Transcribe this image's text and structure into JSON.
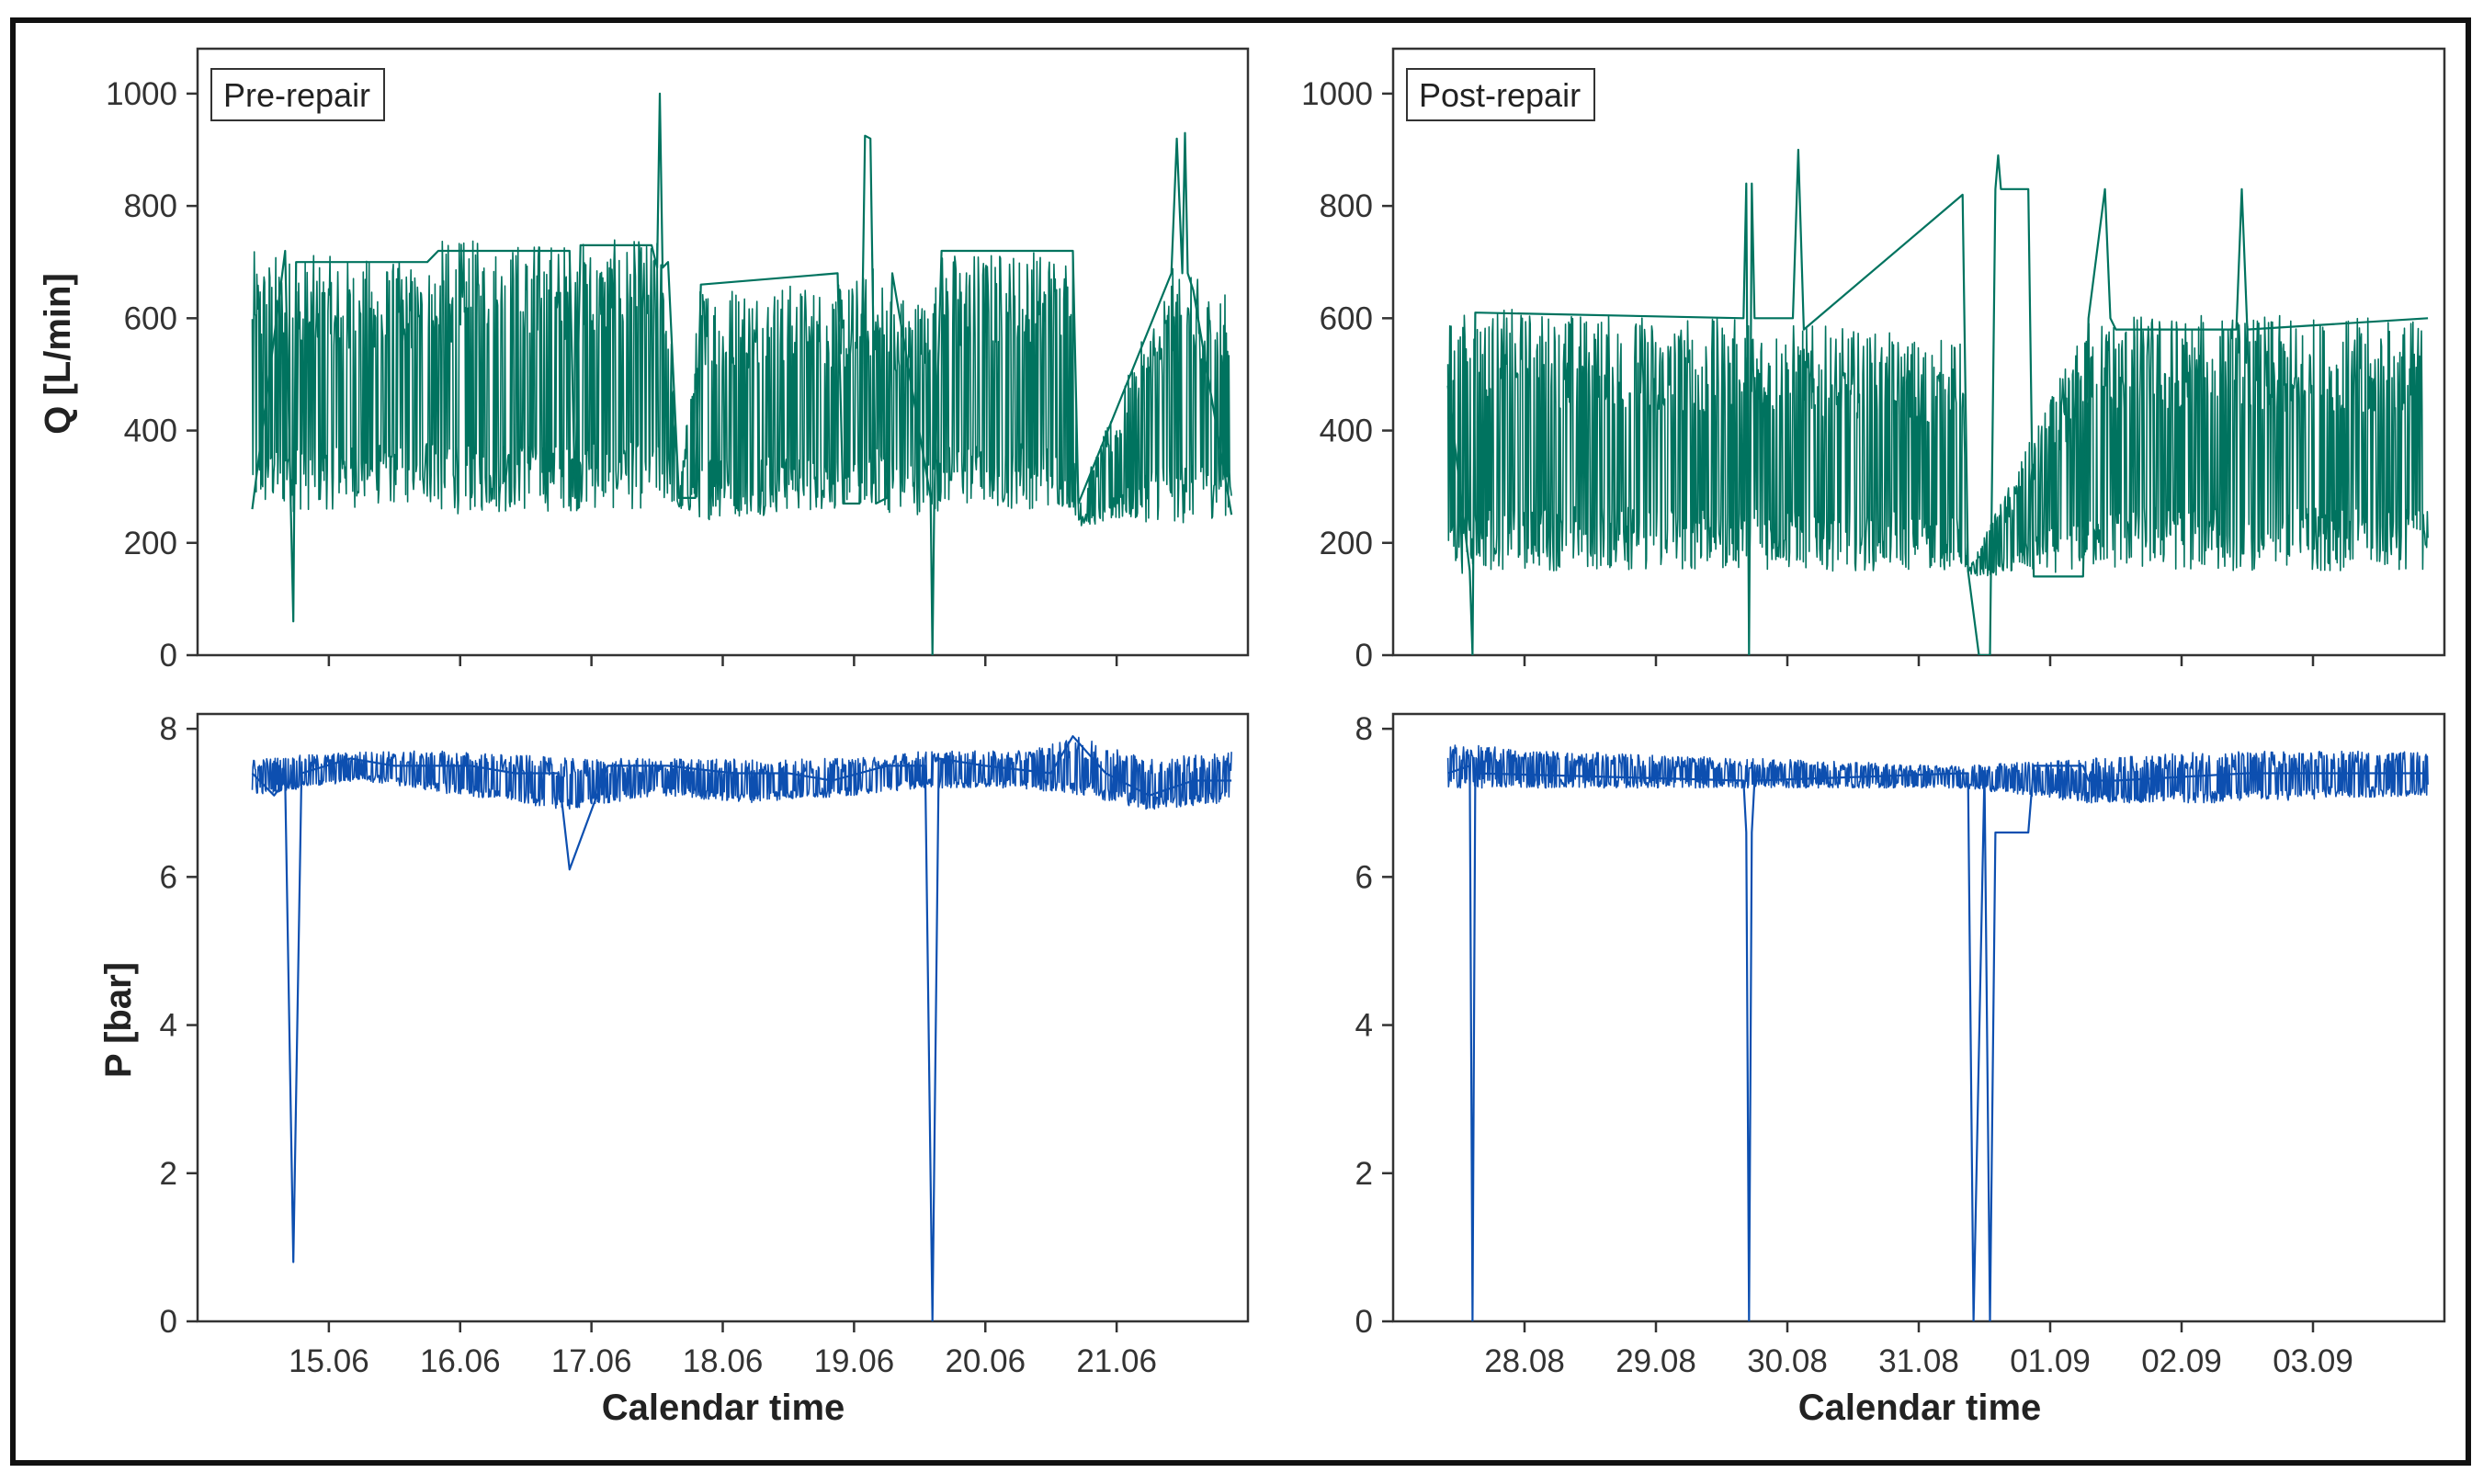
{
  "figure": {
    "xlabel": "Calendar time",
    "ylabel_flow": "Q [L/min]",
    "ylabel_pressure": "P [bar]"
  },
  "chart_data": [
    {
      "panel": "flow-pre-repair",
      "type": "line",
      "annotation": "Pre-repair",
      "ylabel": "Q [L/min]",
      "xlabel": "",
      "xlim": [
        "2023-06-14T00:00",
        "2023-06-22T00:00"
      ],
      "ylim": [
        0,
        1080
      ],
      "yticks": [
        0,
        200,
        400,
        600,
        800,
        1000
      ],
      "xticks": [
        "15.06",
        "16.06",
        "17.06",
        "18.06",
        "19.06",
        "20.06",
        "21.06"
      ],
      "color": "#00735f",
      "series": [
        {
          "x": [
            "2023-06-14T10:00",
            "2023-06-14T16:00",
            "2023-06-14T17:30",
            "2023-06-14T18:00",
            "2023-06-15T18:00",
            "2023-06-15T20:00",
            "2023-06-16T20:00",
            "2023-06-16T21:00",
            "2023-06-16T22:00",
            "2023-06-17T11:00",
            "2023-06-17T12:00",
            "2023-06-17T12:30",
            "2023-06-17T13:00",
            "2023-06-17T14:00",
            "2023-06-17T16:00",
            "2023-06-17T19:00",
            "2023-06-17T20:00",
            "2023-06-18T21:00",
            "2023-06-18T22:00",
            "2023-06-19T01:00",
            "2023-06-19T02:00",
            "2023-06-19T03:00",
            "2023-06-19T04:00",
            "2023-06-19T06:00",
            "2023-06-19T07:00",
            "2023-06-19T14:00",
            "2023-06-19T14:20",
            "2023-06-19T14:40",
            "2023-06-19T16:00",
            "2023-06-20T16:00",
            "2023-06-20T17:00",
            "2023-06-21T10:00",
            "2023-06-21T11:00",
            "2023-06-21T12:00",
            "2023-06-21T12:30",
            "2023-06-21T13:00",
            "2023-06-21T14:00",
            "2023-06-21T21:00"
          ],
          "y": [
            260,
            720,
            60,
            700,
            700,
            720,
            720,
            280,
            730,
            730,
            690,
            1000,
            690,
            700,
            280,
            280,
            660,
            680,
            270,
            270,
            925,
            920,
            270,
            280,
            680,
            280,
            0,
            280,
            720,
            720,
            270,
            680,
            920,
            680,
            930,
            680,
            650,
            250
          ],
          "envelope": {
            "x": [
              "2023-06-14T10:00",
              "2023-06-15T18:00",
              "2023-06-15T20:00",
              "2023-06-17T12:00",
              "2023-06-17T14:00",
              "2023-06-17T16:00",
              "2023-06-17T20:00",
              "2023-06-18T22:00",
              "2023-06-19T04:00",
              "2023-06-19T07:00",
              "2023-06-19T14:00",
              "2023-06-19T16:00",
              "2023-06-20T16:00",
              "2023-06-20T17:00",
              "2023-06-21T10:00",
              "2023-06-21T11:00",
              "2023-06-21T21:00"
            ],
            "low": [
              250,
              270,
              250,
              260,
              270,
              260,
              240,
              260,
              265,
              250,
              250,
              260,
              260,
              230,
              240,
              230,
              250
            ],
            "high": [
              720,
              700,
              740,
              740,
              700,
              280,
              670,
              660,
              700,
              650,
              640,
              720,
              730,
              280,
              690,
              690,
              640
            ]
          }
        }
      ]
    },
    {
      "panel": "flow-post-repair",
      "type": "line",
      "annotation": "Post-repair",
      "ylabel": "",
      "xlabel": "",
      "xlim": [
        "2023-08-27T00:00",
        "2023-09-04T00:00"
      ],
      "ylim": [
        0,
        1080
      ],
      "yticks": [
        0,
        200,
        400,
        600,
        800,
        1000
      ],
      "xticks": [
        "28.08",
        "29.08",
        "30.08",
        "31.08",
        "01.09",
        "02.09",
        "03.09"
      ],
      "color": "#00735f",
      "series": [
        {
          "x": [
            "2023-08-27T10:00",
            "2023-08-27T14:00",
            "2023-08-27T14:30",
            "2023-08-27T15:00",
            "2023-08-29T16:00",
            "2023-08-29T16:30",
            "2023-08-29T17:00",
            "2023-08-29T17:30",
            "2023-08-29T18:00",
            "2023-08-30T01:00",
            "2023-08-30T02:00",
            "2023-08-30T03:00",
            "2023-08-31T08:00",
            "2023-08-31T09:00",
            "2023-08-31T11:00",
            "2023-08-31T13:00",
            "2023-08-31T14:00",
            "2023-08-31T14:30",
            "2023-08-31T15:00",
            "2023-08-31T20:00",
            "2023-08-31T21:00",
            "2023-09-01T06:00",
            "2023-09-01T07:00",
            "2023-09-01T10:00",
            "2023-09-01T11:00",
            "2023-09-01T12:00",
            "2023-09-02T10:00",
            "2023-09-02T11:00",
            "2023-09-02T12:00",
            "2023-09-03T21:00"
          ],
          "y": [
            480,
            150,
            0,
            610,
            600,
            840,
            0,
            840,
            600,
            600,
            900,
            580,
            820,
            150,
            0,
            0,
            830,
            890,
            830,
            830,
            140,
            140,
            600,
            830,
            600,
            580,
            580,
            830,
            580,
            600
          ],
          "envelope": {
            "x": [
              "2023-08-27T10:00",
              "2023-08-27T15:00",
              "2023-08-29T16:00",
              "2023-08-29T18:00",
              "2023-08-31T08:00",
              "2023-08-31T09:00",
              "2023-09-01T07:00",
              "2023-09-01T12:00",
              "2023-09-03T21:00"
            ],
            "low": [
              140,
              150,
              150,
              150,
              150,
              140,
              150,
              150,
              150
            ],
            "high": [
              600,
              620,
              600,
              600,
              560,
              150,
              600,
              610,
              600
            ]
          }
        }
      ]
    },
    {
      "panel": "pressure-pre-repair",
      "type": "line",
      "ylabel": "P [bar]",
      "xlabel": "Calendar time",
      "xlim": [
        "2023-06-14T00:00",
        "2023-06-22T00:00"
      ],
      "ylim": [
        0,
        8.2
      ],
      "yticks": [
        0,
        2,
        4,
        6,
        8
      ],
      "xticks": [
        "15.06",
        "16.06",
        "17.06",
        "18.06",
        "19.06",
        "20.06",
        "21.06"
      ],
      "color": "#0d4fb0",
      "series": [
        {
          "x": [
            "2023-06-14T10:00",
            "2023-06-14T14:00",
            "2023-06-14T16:00",
            "2023-06-14T17:30",
            "2023-06-14T19:00",
            "2023-06-15T04:00",
            "2023-06-15T12:00",
            "2023-06-16T02:00",
            "2023-06-16T10:00",
            "2023-06-16T18:00",
            "2023-06-16T20:00",
            "2023-06-17T03:00",
            "2023-06-17T14:00",
            "2023-06-18T02:00",
            "2023-06-18T12:00",
            "2023-06-18T20:00",
            "2023-06-19T06:00",
            "2023-06-19T13:00",
            "2023-06-19T14:20",
            "2023-06-19T15:30",
            "2023-06-20T00:00",
            "2023-06-20T12:00",
            "2023-06-20T16:00",
            "2023-06-20T22:00",
            "2023-06-21T06:00",
            "2023-06-21T14:00",
            "2023-06-21T21:00"
          ],
          "y": [
            7.4,
            7.1,
            7.3,
            0.8,
            7.4,
            7.6,
            7.5,
            7.5,
            7.4,
            7.4,
            6.1,
            7.5,
            7.5,
            7.4,
            7.4,
            7.3,
            7.5,
            7.5,
            0.0,
            7.6,
            7.5,
            7.4,
            7.9,
            7.4,
            7.1,
            7.3,
            7.3
          ],
          "envelope": {
            "x": [
              "2023-06-14T10:00",
              "2023-06-15T06:00",
              "2023-06-16T00:00",
              "2023-06-16T20:00",
              "2023-06-17T12:00",
              "2023-06-18T04:00",
              "2023-06-19T00:00",
              "2023-06-19T12:00",
              "2023-06-20T06:00",
              "2023-06-20T18:00",
              "2023-06-21T06:00",
              "2023-06-21T21:00"
            ],
            "low": [
              7.1,
              7.3,
              7.1,
              6.9,
              7.1,
              7.0,
              7.1,
              7.2,
              7.2,
              7.1,
              6.9,
              7.0
            ],
            "high": [
              7.6,
              7.7,
              7.7,
              7.6,
              7.6,
              7.6,
              7.6,
              7.7,
              7.7,
              7.9,
              7.6,
              7.7
            ]
          }
        }
      ]
    },
    {
      "panel": "pressure-post-repair",
      "type": "line",
      "ylabel": "",
      "xlabel": "Calendar time",
      "xlim": [
        "2023-08-27T00:00",
        "2023-09-04T00:00"
      ],
      "ylim": [
        0,
        8.2
      ],
      "yticks": [
        0,
        2,
        4,
        6,
        8
      ],
      "xticks": [
        "28.08",
        "29.08",
        "30.08",
        "31.08",
        "01.09",
        "02.09",
        "03.09"
      ],
      "color": "#0d4fb0",
      "series": [
        {
          "x": [
            "2023-08-27T10:00",
            "2023-08-27T14:00",
            "2023-08-27T14:30",
            "2023-08-27T15:00",
            "2023-08-29T16:00",
            "2023-08-29T16:30",
            "2023-08-29T17:00",
            "2023-08-29T17:30",
            "2023-08-29T18:00",
            "2023-08-31T08:00",
            "2023-08-31T09:00",
            "2023-08-31T10:00",
            "2023-08-31T12:00",
            "2023-08-31T13:00",
            "2023-08-31T14:00",
            "2023-08-31T18:00",
            "2023-08-31T20:00",
            "2023-08-31T21:00",
            "2023-09-01T06:00",
            "2023-09-01T07:00",
            "2023-09-01T12:00",
            "2023-09-02T12:00",
            "2023-09-03T21:00"
          ],
          "y": [
            7.4,
            7.5,
            0.0,
            7.4,
            7.3,
            6.6,
            0.0,
            6.6,
            7.3,
            7.4,
            7.4,
            0.0,
            7.4,
            0.0,
            6.6,
            6.6,
            6.6,
            7.5,
            7.5,
            7.3,
            7.3,
            7.4,
            7.4
          ],
          "envelope": {
            "x": [
              "2023-08-27T10:00",
              "2023-08-28T06:00",
              "2023-08-29T16:00",
              "2023-08-29T18:00",
              "2023-08-31T08:00",
              "2023-09-01T07:00",
              "2023-09-02T06:00",
              "2023-09-03T21:00"
            ],
            "low": [
              7.2,
              7.2,
              7.2,
              7.2,
              7.2,
              7.0,
              7.0,
              7.1
            ],
            "high": [
              7.8,
              7.7,
              7.6,
              7.6,
              7.5,
              7.6,
              7.7,
              7.7
            ]
          }
        }
      ]
    }
  ]
}
